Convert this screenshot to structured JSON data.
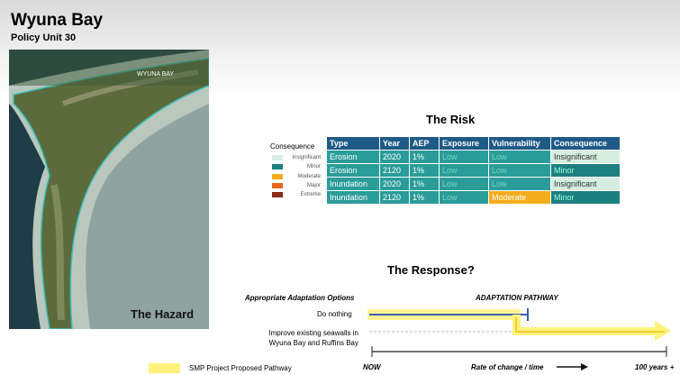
{
  "header": {
    "title": "Wyuna Bay",
    "subtitle": "Policy Unit 30"
  },
  "map": {
    "place": "WYUNA BAY",
    "label": "The Hazard"
  },
  "risk": {
    "title": "The Risk",
    "legend": {
      "title": "Consequence",
      "items": [
        "Insignificant",
        "Minor",
        "Moderate",
        "Major",
        "Extreme"
      ]
    },
    "table": {
      "columns": [
        "Type",
        "Year",
        "AEP",
        "Exposure",
        "Vulnerability",
        "Consequence"
      ],
      "rows": [
        [
          "Erosion",
          "2020",
          "1%",
          "Low",
          "Low",
          "Insignificant"
        ],
        [
          "Erosion",
          "2120",
          "1%",
          "Low",
          "Low",
          "Minor"
        ],
        [
          "Inundation",
          "2020",
          "1%",
          "Low",
          "Low",
          "Insignificant"
        ],
        [
          "Inundation",
          "2120",
          "1%",
          "Low",
          "Moderate",
          "Minor"
        ]
      ]
    }
  },
  "response": {
    "title": "The Response?",
    "options_header": "Appropriate Adaptation Options",
    "pathway_header": "ADAPTATION PATHWAY",
    "options": [
      "Do nothing",
      "Improve existing seawalls in Wyuna Bay and Ruffins Bay"
    ],
    "axis": {
      "start": "NOW",
      "middle": "Rate of change / time",
      "end": "100 years +"
    },
    "legend": "SMP Project Proposed Pathway"
  }
}
